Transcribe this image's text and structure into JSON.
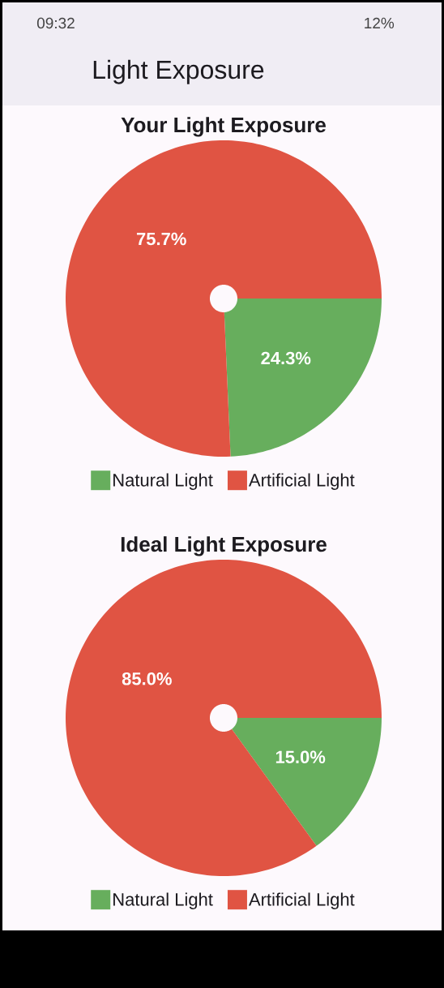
{
  "chart_data": [
    {
      "type": "other",
      "title": "Light Exposure",
      "annotations": [
        "09:32",
        "12%"
      ]
    },
    {
      "type": "pie",
      "title": "Your Light Exposure",
      "categories": [
        "Natural Light",
        "Artificial Light"
      ],
      "values": [
        24.3,
        75.7
      ],
      "colors": [
        "#67ae5d",
        "#e05443"
      ],
      "value_labels": [
        "24.3%",
        "75.7%"
      ],
      "legend": "bottom"
    },
    {
      "type": "pie",
      "title": "Ideal Light Exposure",
      "categories": [
        "Natural Light",
        "Artificial Light"
      ],
      "values": [
        15.0,
        85.0
      ],
      "colors": [
        "#67ae5d",
        "#e05443"
      ],
      "value_labels": [
        "15.0%",
        "85.0%"
      ],
      "legend": "bottom"
    }
  ]
}
